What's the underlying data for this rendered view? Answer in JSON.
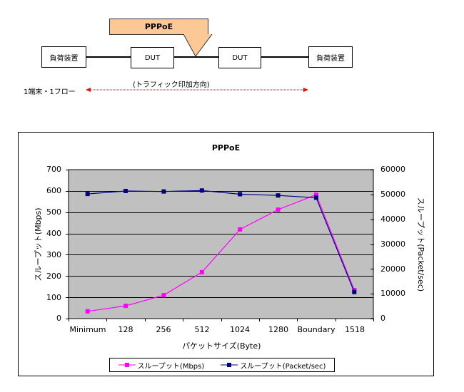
{
  "diagram": {
    "callout_label": "PPPoE",
    "nodes": [
      {
        "label": "負荷装置"
      },
      {
        "label": "DUT"
      },
      {
        "label": "DUT"
      },
      {
        "label": "負荷装置"
      }
    ],
    "flow_label": "1端末・1フロー",
    "direction_label": "(トラフィック印加方向)",
    "arrow_color": "#ff0000",
    "callout_color": "#fcc896"
  },
  "chart_data": {
    "type": "line",
    "title": "PPPoE",
    "xlabel": "パケットサイズ(Byte)",
    "ylabel": "スループット(Mbps)",
    "ylabel_right": "スループット(Packet/sec)",
    "categories": [
      "Minimum",
      "128",
      "256",
      "512",
      "1024",
      "1280",
      "Boundary",
      "1518"
    ],
    "ylim": [
      0,
      700
    ],
    "ylim_right": [
      0,
      60000
    ],
    "yticks": [
      "0",
      "100",
      "200",
      "300",
      "400",
      "500",
      "600",
      "700"
    ],
    "yticks_right": [
      "0",
      "10000",
      "20000",
      "30000",
      "40000",
      "50000",
      "60000"
    ],
    "grid": true,
    "plot_background": "#c0c0c0",
    "legend_position": "bottom",
    "series": [
      {
        "name": "スループット(Mbps)",
        "axis": "left",
        "color": "#ff00ff",
        "values": [
          34,
          60,
          110,
          218,
          419,
          512,
          582,
          134
        ]
      },
      {
        "name": "スループット(Packet/sec)",
        "axis": "right",
        "color": "#000080",
        "values": [
          50200,
          51400,
          51200,
          51600,
          50100,
          49600,
          48700,
          10700
        ]
      }
    ]
  }
}
